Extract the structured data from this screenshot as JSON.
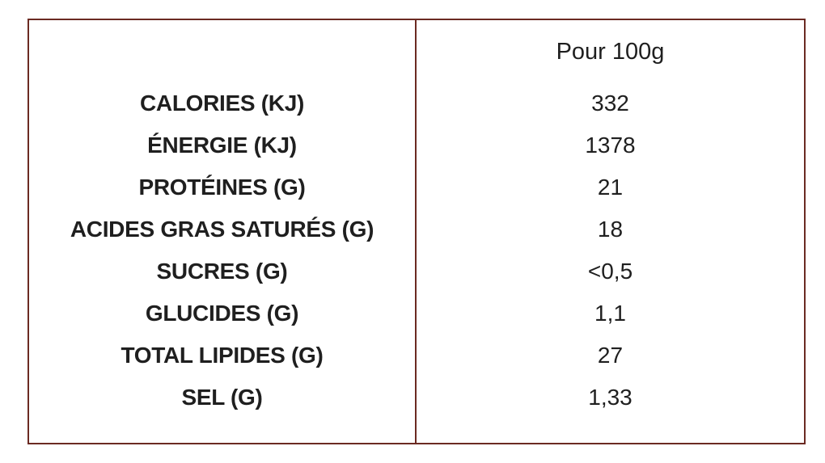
{
  "table": {
    "column_header": "Pour 100g",
    "rows": [
      {
        "label": "CALORIES (KJ)",
        "value": "332"
      },
      {
        "label": "ÉNERGIE (KJ)",
        "value": "1378"
      },
      {
        "label": "PROTÉINES (G)",
        "value": "21"
      },
      {
        "label": "ACIDES GRAS SATURÉS (G)",
        "value": "18"
      },
      {
        "label": "SUCRES (G)",
        "value": "<0,5"
      },
      {
        "label": "GLUCIDES (G)",
        "value": "1,1"
      },
      {
        "label": "TOTAL LIPIDES (G)",
        "value": "27"
      },
      {
        "label": "SEL (G)",
        "value": "1,33"
      }
    ],
    "border_color": "#6b2a22"
  }
}
